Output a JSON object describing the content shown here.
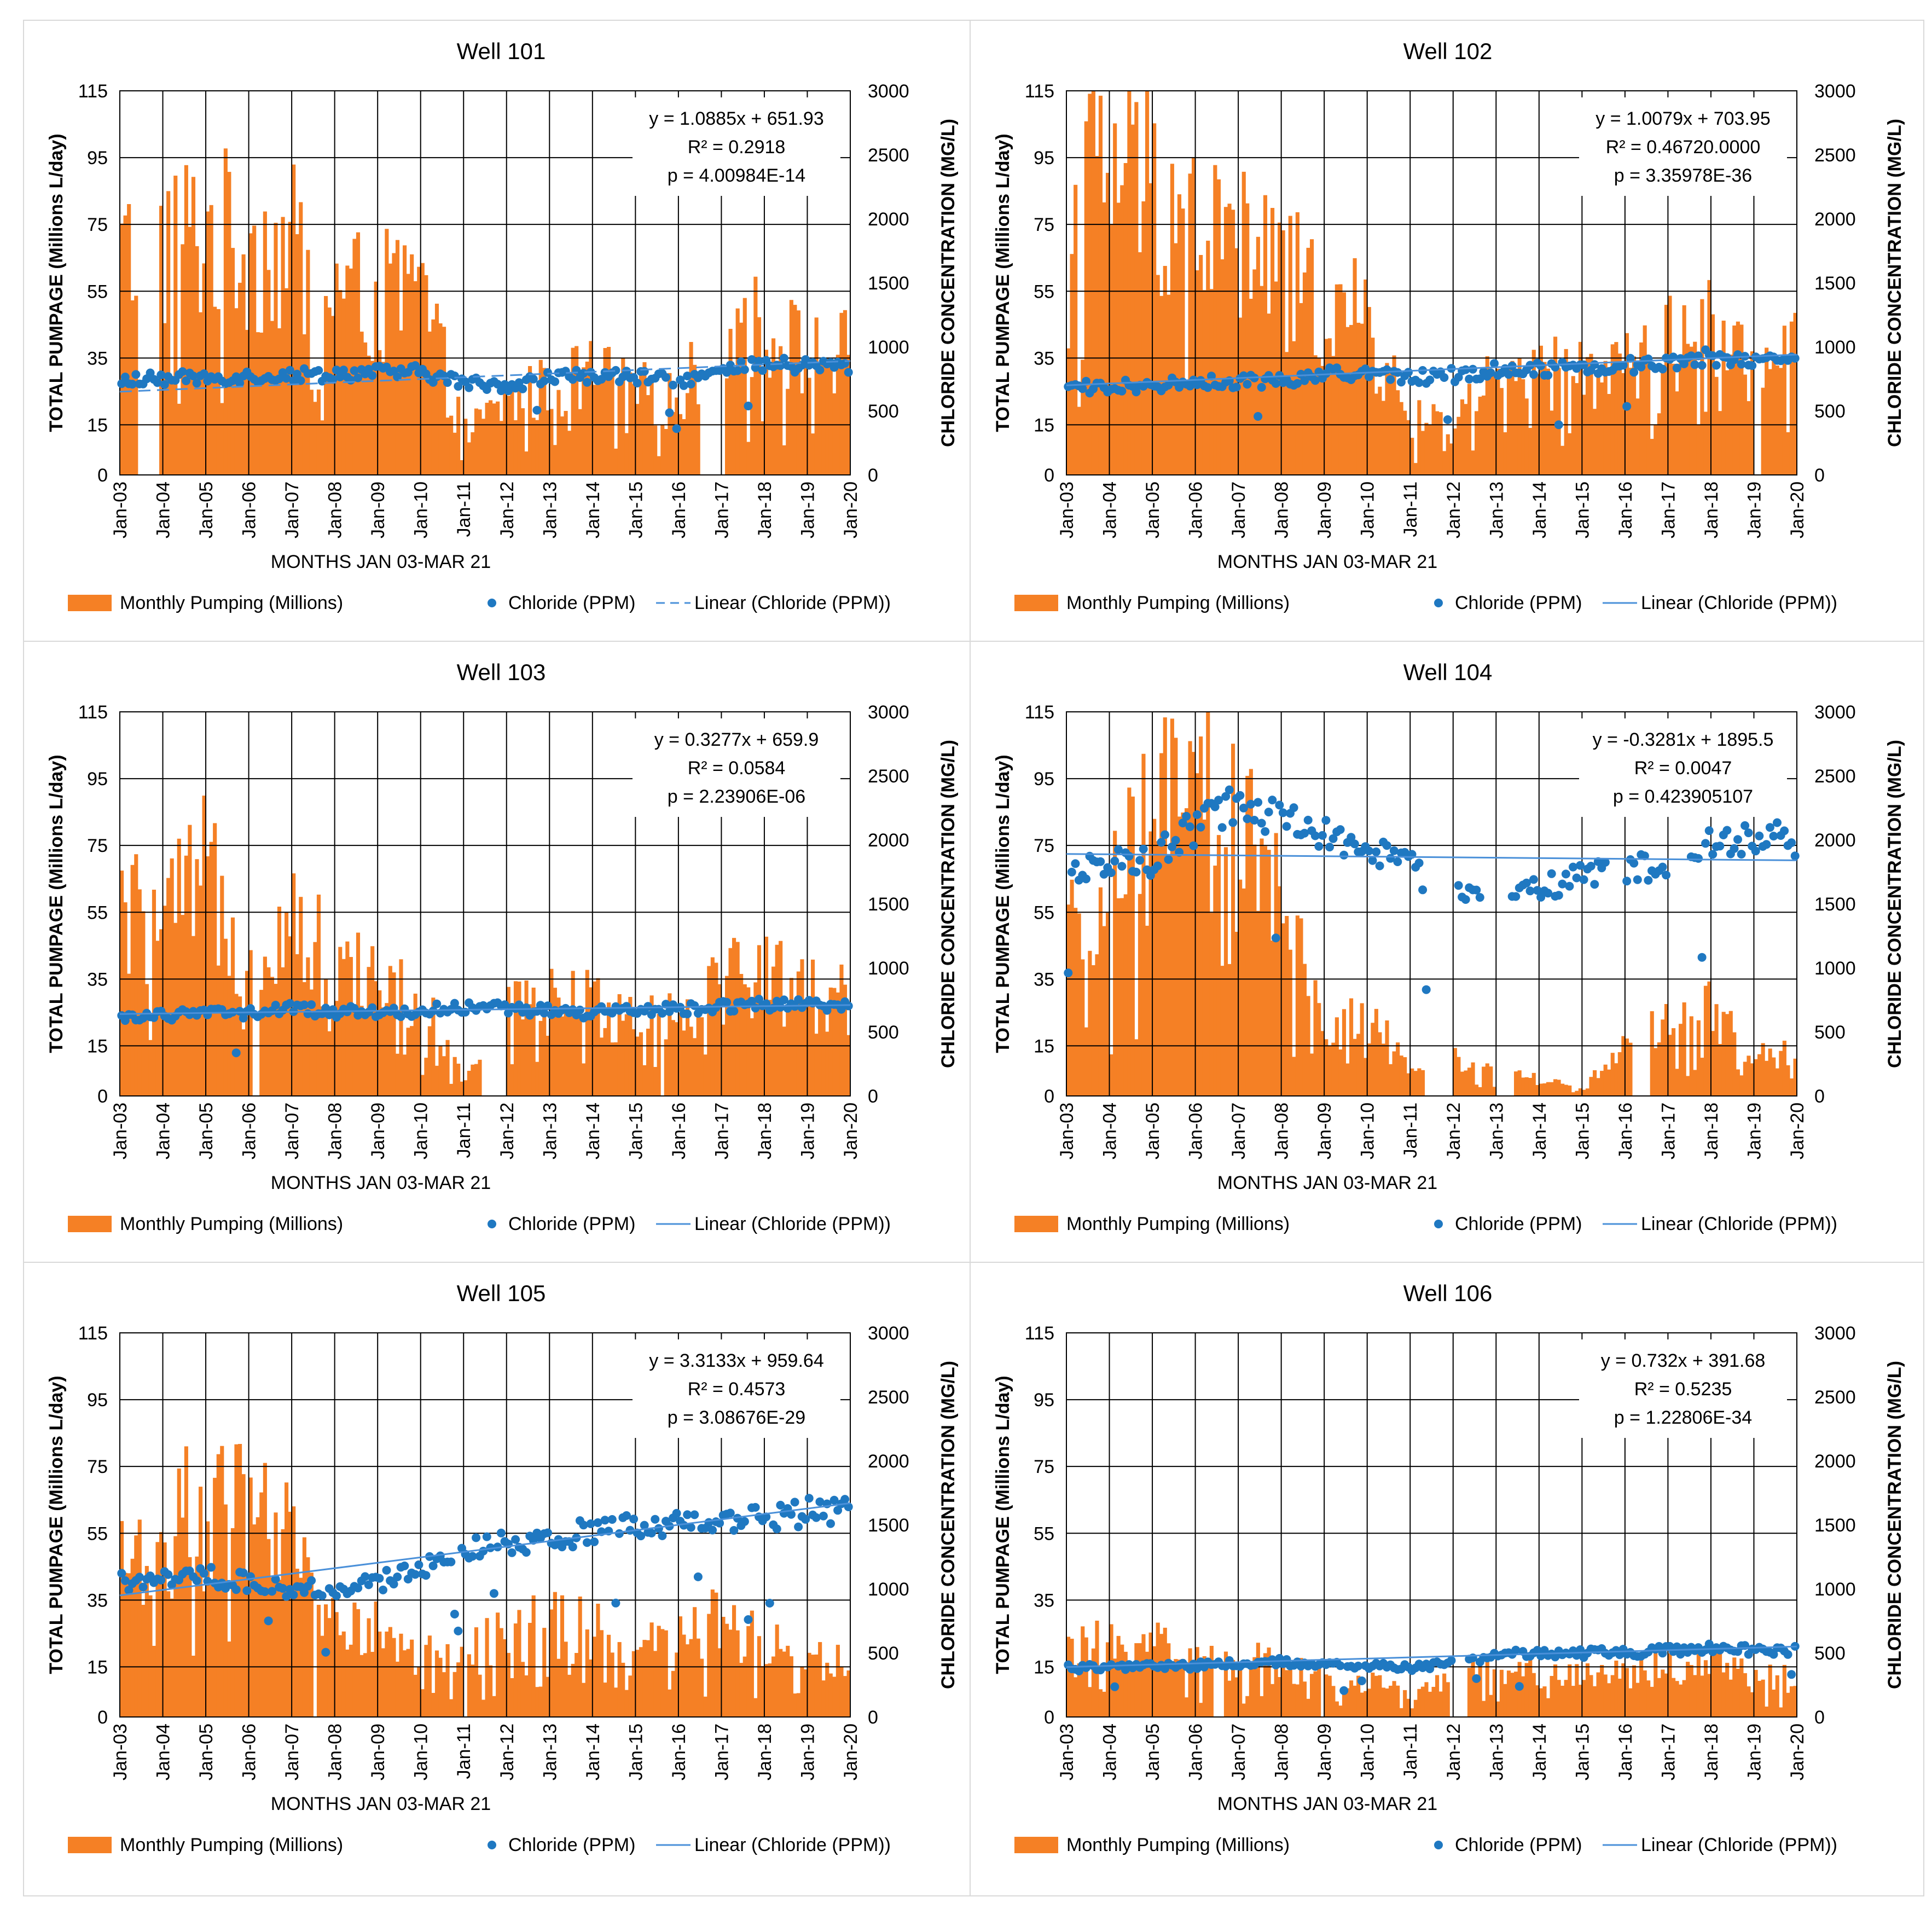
{
  "colors": {
    "bar": "#F58025",
    "scatter": "#1F78C1",
    "trend": "#4A90D9",
    "grid": "#000000",
    "text": "#000000"
  },
  "chart_data": [
    {
      "type": "bar+scatter",
      "title": "Well 101",
      "xlabel": "MONTHS JAN 03-MAR 21",
      "ylabel": "TOTAL PUMPAGE (Millions L/day)",
      "y2label": "CHLORIDE CONCENTRATION (MG/L)",
      "categories": [
        "Jan-03",
        "Jan-04",
        "Jan-05",
        "Jan-06",
        "Jan-07",
        "Jan-08",
        "Jan-09",
        "Jan-10",
        "Jan-11",
        "Jan-12",
        "Jan-13",
        "Jan-14",
        "Jan-15",
        "Jan-16",
        "Jan-17",
        "Jan-18",
        "Jan-19",
        "Jan-20"
      ],
      "y_ticks": [
        "0",
        "15",
        "35",
        "55",
        "75",
        "95",
        "115"
      ],
      "y2_ticks": [
        "0",
        "500",
        "1000",
        "1500",
        "2000",
        "2500",
        "3000"
      ],
      "ylim": [
        0,
        115
      ],
      "y2lim": [
        0,
        3000
      ],
      "equation": [
        "y = 1.0885x + 651.93",
        "R² = 0.2918",
        "p = 4.00984E-14"
      ],
      "trend": {
        "start": 650,
        "end": 890,
        "style": "dashed"
      },
      "legend": [
        "Monthly Pumping (Millions)",
        "Chloride (PPM)",
        "Linear (Chloride (PPM))"
      ],
      "pumping_yearly": [
        64,
        70,
        72,
        69,
        67,
        55,
        52,
        55,
        12,
        22,
        26,
        30,
        25,
        22,
        45,
        44,
        36
      ],
      "pumping_gaps": [
        [
          0.4,
          0.9
        ],
        [
          13.5,
          14.0
        ],
        [
          14.0,
          14.1
        ]
      ],
      "chloride_yearly": [
        740,
        750,
        760,
        770,
        780,
        790,
        800,
        800,
        720,
        700,
        760,
        780,
        760,
        740,
        800,
        860,
        850
      ],
      "chloride_gaps": []
    },
    {
      "type": "bar+scatter",
      "title": "Well 102",
      "xlabel": "MONTHS JAN 03-MAR 21",
      "ylabel": "TOTAL PUMPAGE (Millions L/day)",
      "y2label": "CHLORIDE CONCENTRATION (MG/L)",
      "categories": [
        "Jan-03",
        "Jan-04",
        "Jan-05",
        "Jan-06",
        "Jan-07",
        "Jan-08",
        "Jan-09",
        "Jan-10",
        "Jan-11",
        "Jan-12",
        "Jan-13",
        "Jan-14",
        "Jan-15",
        "Jan-16",
        "Jan-17",
        "Jan-18",
        "Jan-19",
        "Jan-20"
      ],
      "y_ticks": [
        "0",
        "15",
        "35",
        "55",
        "75",
        "95",
        "115"
      ],
      "y2_ticks": [
        "0",
        "500",
        "1000",
        "1500",
        "2000",
        "2500",
        "3000"
      ],
      "ylim": [
        0,
        115
      ],
      "y2lim": [
        0,
        3000
      ],
      "equation": [
        "y = 1.0079x + 703.95",
        "R² = 0.46720.0000",
        "p = 3.35978E-36"
      ],
      "trend": {
        "start": 700,
        "end": 940,
        "style": "solid"
      },
      "legend": [
        "Monthly Pumping (Millions)",
        "Chloride (PPM)",
        "Linear (Chloride (PPM))"
      ],
      "pumping_yearly": [
        90,
        92,
        88,
        75,
        68,
        60,
        50,
        45,
        15,
        20,
        27,
        30,
        30,
        32,
        40,
        42,
        35
      ],
      "pumping_gaps": [
        [
          16.0,
          16.15
        ]
      ],
      "chloride_yearly": [
        680,
        690,
        700,
        720,
        730,
        740,
        780,
        800,
        760,
        780,
        820,
        830,
        840,
        850,
        880,
        920,
        900
      ],
      "chloride_gaps": []
    },
    {
      "type": "bar+scatter",
      "title": "Well 103",
      "xlabel": "MONTHS JAN 03-MAR 21",
      "ylabel": "TOTAL PUMPAGE (Millions L/day)",
      "y2label": "CHLORIDE CONCENTRATION (MG/L)",
      "categories": [
        "Jan-03",
        "Jan-04",
        "Jan-05",
        "Jan-06",
        "Jan-07",
        "Jan-08",
        "Jan-09",
        "Jan-10",
        "Jan-11",
        "Jan-12",
        "Jan-13",
        "Jan-14",
        "Jan-15",
        "Jan-16",
        "Jan-17",
        "Jan-18",
        "Jan-19",
        "Jan-20"
      ],
      "y_ticks": [
        "0",
        "15",
        "35",
        "55",
        "75",
        "95",
        "115"
      ],
      "y2_ticks": [
        "0",
        "500",
        "1000",
        "1500",
        "2000",
        "2500",
        "3000"
      ],
      "ylim": [
        0,
        115
      ],
      "y2lim": [
        0,
        3000
      ],
      "equation": [
        "y = 0.3277x + 659.9",
        "R² = 0.0584",
        "p = 2.23906E-06"
      ],
      "trend": {
        "start": 640,
        "end": 710,
        "style": "solid"
      },
      "legend": [
        "Monthly Pumping (Millions)",
        "Chloride (PPM)",
        "Linear (Chloride (PPM))"
      ],
      "pumping_yearly": [
        55,
        50,
        65,
        45,
        55,
        38,
        35,
        28,
        5,
        25,
        28,
        28,
        25,
        25,
        35,
        38,
        30
      ],
      "pumping_gaps": [
        [
          3.05,
          3.25
        ],
        [
          8.4,
          9.0
        ],
        [
          12.6,
          12.7
        ]
      ],
      "chloride_yearly": [
        620,
        630,
        640,
        650,
        680,
        660,
        650,
        660,
        700,
        680,
        660,
        650,
        660,
        680,
        700,
        720,
        700
      ],
      "chloride_gaps": []
    },
    {
      "type": "bar+scatter",
      "title": "Well 104",
      "xlabel": "MONTHS JAN 03-MAR 21",
      "ylabel": "TOTAL PUMPAGE (Millions L/day)",
      "y2label": "CHLORIDE CONCENTRATION (MG/L)",
      "categories": [
        "Jan-03",
        "Jan-04",
        "Jan-05",
        "Jan-06",
        "Jan-07",
        "Jan-08",
        "Jan-09",
        "Jan-10",
        "Jan-11",
        "Jan-12",
        "Jan-13",
        "Jan-14",
        "Jan-15",
        "Jan-16",
        "Jan-17",
        "Jan-18",
        "Jan-19",
        "Jan-20"
      ],
      "y_ticks": [
        "0",
        "15",
        "35",
        "55",
        "75",
        "95",
        "115"
      ],
      "y2_ticks": [
        "0",
        "500",
        "1000",
        "1500",
        "2000",
        "2500",
        "3000"
      ],
      "ylim": [
        0,
        115
      ],
      "y2lim": [
        0,
        3000
      ],
      "equation": [
        "y = -0.3281x + 1895.5",
        "R² = 0.0047",
        "p = 0.423905107"
      ],
      "trend": {
        "start": 1890,
        "end": 1840,
        "style": "solid"
      },
      "legend": [
        "Monthly Pumping (Millions)",
        "Chloride (PPM)",
        "Linear (Chloride (PPM))"
      ],
      "pumping_yearly": [
        45,
        55,
        80,
        88,
        80,
        55,
        20,
        25,
        6,
        12,
        8,
        5,
        2,
        15,
        20,
        25,
        12
      ],
      "pumping_gaps": [
        [
          8.3,
          9.0
        ],
        [
          10.0,
          10.4
        ],
        [
          13.2,
          13.6
        ]
      ],
      "chloride_yearly": [
        1750,
        1800,
        1850,
        2100,
        2300,
        2150,
        2050,
        1900,
        1800,
        1550,
        1600,
        1650,
        1700,
        1750,
        1800,
        1950,
        2000
      ],
      "chloride_gaps": [
        [
          8.4,
          9.1
        ],
        [
          9.7,
          10.3
        ],
        [
          12.6,
          13.0
        ],
        [
          14.0,
          14.5
        ]
      ]
    },
    {
      "type": "bar+scatter",
      "title": "Well 105",
      "xlabel": "MONTHS JAN 03-MAR 21",
      "ylabel": "TOTAL PUMPAGE (Millions L/day)",
      "y2label": "CHLORIDE CONCENTRATION (MG/L)",
      "categories": [
        "Jan-03",
        "Jan-04",
        "Jan-05",
        "Jan-06",
        "Jan-07",
        "Jan-08",
        "Jan-09",
        "Jan-10",
        "Jan-11",
        "Jan-12",
        "Jan-13",
        "Jan-14",
        "Jan-15",
        "Jan-16",
        "Jan-17",
        "Jan-18",
        "Jan-19",
        "Jan-20"
      ],
      "y_ticks": [
        "0",
        "15",
        "35",
        "55",
        "75",
        "95",
        "115"
      ],
      "y2_ticks": [
        "0",
        "500",
        "1000",
        "1500",
        "2000",
        "2500",
        "3000"
      ],
      "ylim": [
        0,
        115
      ],
      "y2lim": [
        0,
        3000
      ],
      "equation": [
        "y = 3.3133x + 959.64",
        "R² = 0.4573",
        "p = 3.08676E-29"
      ],
      "trend": {
        "start": 950,
        "end": 1670,
        "style": "solid"
      },
      "legend": [
        "Monthly Pumping (Millions)",
        "Chloride (PPM)",
        "Linear (Chloride (PPM))"
      ],
      "pumping_yearly": [
        45,
        55,
        62,
        58,
        50,
        30,
        25,
        18,
        18,
        25,
        28,
        25,
        20,
        22,
        30,
        22,
        18
      ],
      "pumping_gaps": [
        [
          4.5,
          4.6
        ],
        [
          8.0,
          8.1
        ]
      ],
      "chloride_yearly": [
        1050,
        1100,
        1100,
        1050,
        1000,
        1000,
        1050,
        1150,
        1300,
        1350,
        1400,
        1450,
        1500,
        1500,
        1500,
        1550,
        1600
      ],
      "chloride_gaps": []
    },
    {
      "type": "bar+scatter",
      "title": "Well 106",
      "xlabel": "MONTHS JAN 03-MAR 21",
      "ylabel": "TOTAL PUMPAGE (Millions L/day)",
      "y2label": "CHLORIDE CONCENTRATION (MG/L)",
      "categories": [
        "Jan-03",
        "Jan-04",
        "Jan-05",
        "Jan-06",
        "Jan-07",
        "Jan-08",
        "Jan-09",
        "Jan-10",
        "Jan-11",
        "Jan-12",
        "Jan-13",
        "Jan-14",
        "Jan-15",
        "Jan-16",
        "Jan-17",
        "Jan-18",
        "Jan-19",
        "Jan-20"
      ],
      "y_ticks": [
        "0",
        "15",
        "35",
        "55",
        "75",
        "95",
        "115"
      ],
      "y2_ticks": [
        "0",
        "500",
        "1000",
        "1500",
        "2000",
        "2500",
        "3000"
      ],
      "ylim": [
        0,
        115
      ],
      "y2lim": [
        0,
        3000
      ],
      "equation": [
        "y = 0.732x + 391.68",
        "R² = 0.5235",
        "p = 1.22806E-34"
      ],
      "trend": {
        "start": 390,
        "end": 550,
        "style": "solid"
      },
      "legend": [
        "Monthly Pumping (Millions)",
        "Chloride (PPM)",
        "Linear (Chloride (PPM))"
      ],
      "pumping_yearly": [
        18,
        22,
        25,
        15,
        18,
        15,
        12,
        10,
        8,
        12,
        14,
        14,
        12,
        14,
        15,
        16,
        12
      ],
      "pumping_gaps": [
        [
          3.4,
          3.7
        ],
        [
          5.9,
          6.0
        ],
        [
          9.0,
          9.3
        ],
        [
          8.95,
          9.0
        ]
      ],
      "chloride_yearly": [
        380,
        390,
        400,
        400,
        420,
        430,
        400,
        400,
        380,
        420,
        480,
        500,
        500,
        500,
        520,
        540,
        520
      ],
      "chloride_gaps": [
        [
          9.0,
          9.3
        ]
      ]
    }
  ]
}
